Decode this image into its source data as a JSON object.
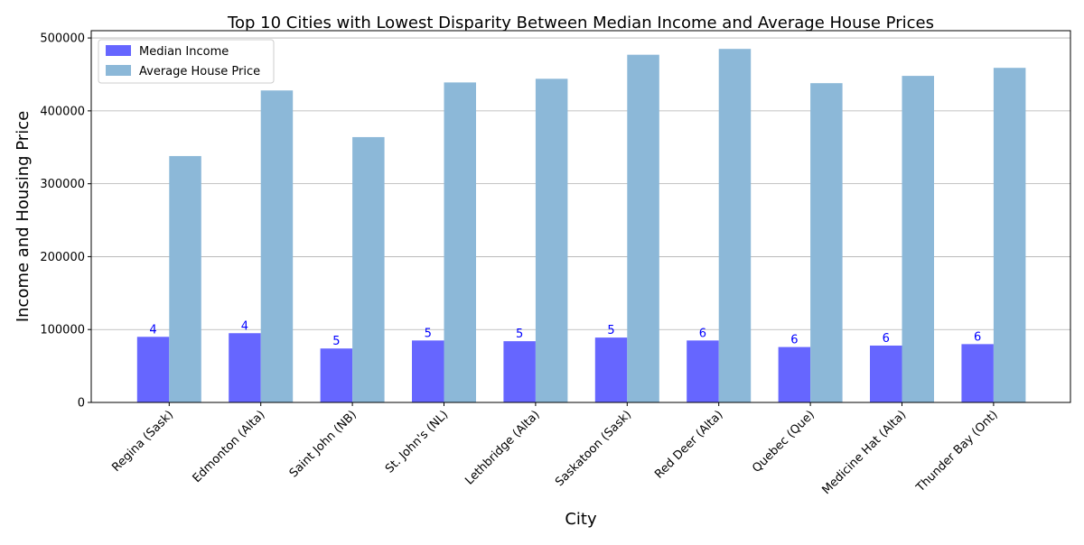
{
  "chart_data": {
    "type": "bar",
    "title": "Top 10 Cities with Lowest Disparity Between Median Income and Average House Prices",
    "xlabel": "City",
    "ylabel": "Income and Housing Price",
    "ylim": [
      0,
      510000
    ],
    "yticks": [
      0,
      100000,
      200000,
      300000,
      400000,
      500000
    ],
    "ytick_labels": [
      "0",
      "100000",
      "200000",
      "300000",
      "400000",
      "500000"
    ],
    "grid": "y",
    "legend_position": "top-left",
    "categories": [
      "Regina (Sask)",
      "Edmonton (Alta)",
      "Saint John (NB)",
      "St. John's (NL)",
      "Lethbridge (Alta)",
      "Saskatoon (Sask)",
      "Red Deer (Alta)",
      "Quebec (Que)",
      "Medicine Hat (Alta)",
      "Thunder Bay (Ont)"
    ],
    "series": [
      {
        "name": "Median Income",
        "color": "#6666ff",
        "values": [
          90000,
          95000,
          74000,
          85000,
          84000,
          89000,
          85000,
          76000,
          78000,
          80000
        ],
        "labels": [
          "4",
          "4",
          "5",
          "5",
          "5",
          "5",
          "6",
          "6",
          "6",
          "6"
        ],
        "label_color": "#0000ff"
      },
      {
        "name": "Average House Price",
        "color": "#8cb8d8",
        "values": [
          338000,
          428000,
          364000,
          439000,
          444000,
          477000,
          485000,
          438000,
          448000,
          459000
        ]
      }
    ]
  }
}
